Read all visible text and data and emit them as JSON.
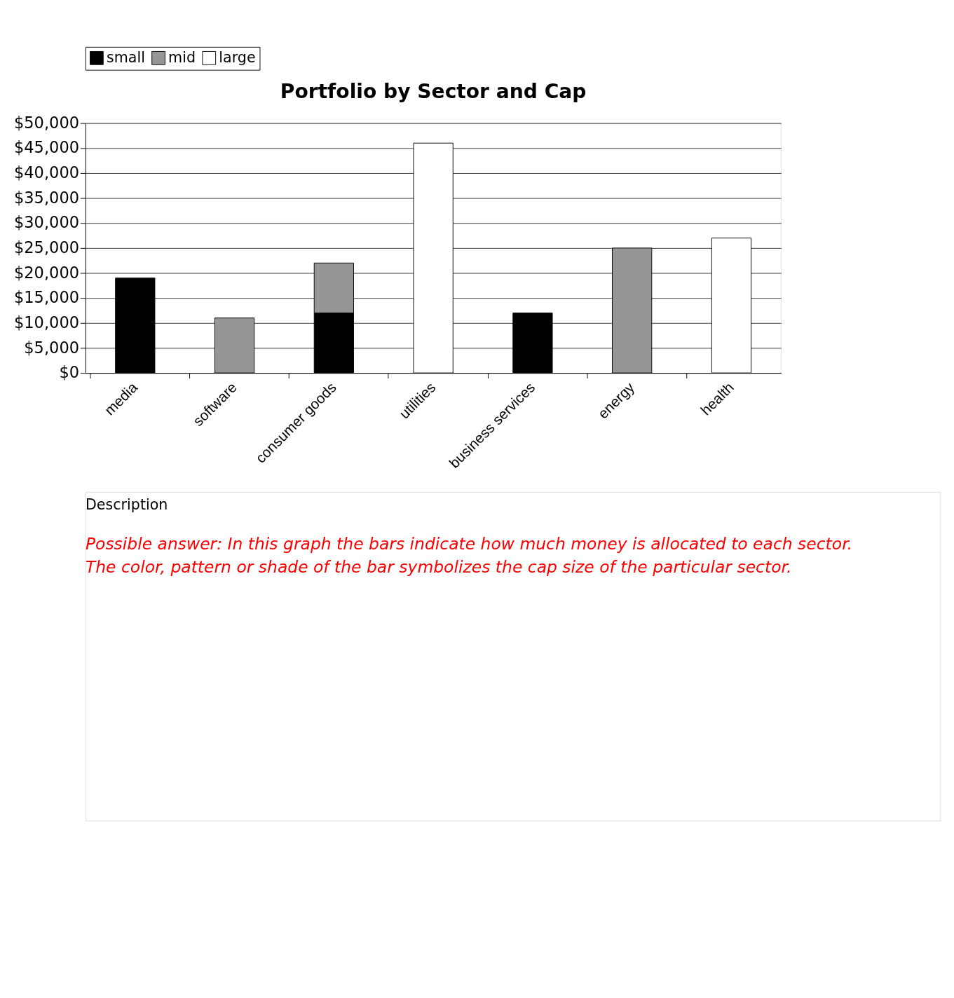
{
  "chart_data": {
    "type": "bar",
    "title": "Portfolio by Sector and Cap",
    "categories": [
      "media",
      "software",
      "consumer goods",
      "utilities",
      "business services",
      "energy",
      "health"
    ],
    "stacked": true,
    "series": [
      {
        "name": "small",
        "color": "#000000",
        "values": [
          19000,
          null,
          12000,
          null,
          12000,
          null,
          null
        ]
      },
      {
        "name": "mid",
        "color": "#969696",
        "values": [
          null,
          11000,
          10000,
          null,
          null,
          25000,
          null
        ]
      },
      {
        "name": "large",
        "color": "#ffffff",
        "values": [
          null,
          null,
          null,
          46000,
          null,
          null,
          27000
        ]
      }
    ],
    "ylim": [
      0,
      50000
    ],
    "yticks": [
      {
        "value": 0,
        "label": "$0"
      },
      {
        "value": 5000,
        "label": "$5,000"
      },
      {
        "value": 10000,
        "label": "$10,000"
      },
      {
        "value": 15000,
        "label": "$15,000"
      },
      {
        "value": 20000,
        "label": "$20,000"
      },
      {
        "value": 25000,
        "label": "$25,000"
      },
      {
        "value": 30000,
        "label": "$30,000"
      },
      {
        "value": 35000,
        "label": "$35,000"
      },
      {
        "value": 40000,
        "label": "$40,000"
      },
      {
        "value": 45000,
        "label": "$45,000"
      },
      {
        "value": 50000,
        "label": "$50,000"
      }
    ],
    "grid": "y",
    "legend": "top",
    "annotations": [
      "Description",
      "Possible answer:  In this graph the bars indicate how much money is allocated to each sector.",
      "The color, pattern or shade of the bar symbolizes the cap size of the particular sector."
    ]
  }
}
